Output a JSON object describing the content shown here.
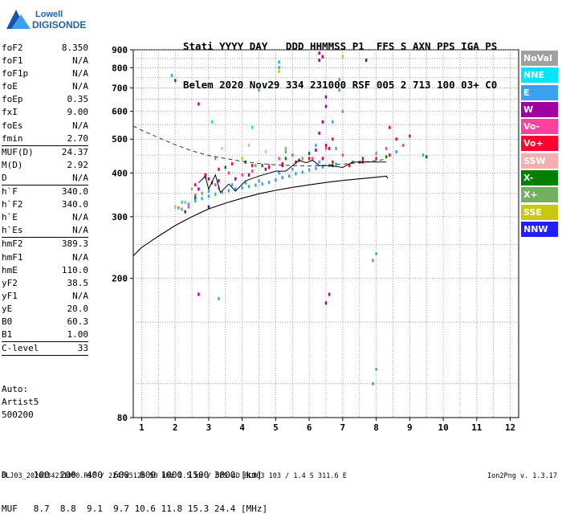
{
  "logo": {
    "line1": "Lowell",
    "line2": "DIGISONDE"
  },
  "header": {
    "line1": "Stati YYYY DAY   DDD HHMMSS P1  FFS S AXN PPS IGA PS",
    "line2": "Belem 2020 Nov29 334 231000 RSF 005 2 713 100 03+ C0"
  },
  "params": [
    {
      "k": "foF2",
      "v": "8.350"
    },
    {
      "k": "foF1",
      "v": "N/A"
    },
    {
      "k": "foF1p",
      "v": "N/A"
    },
    {
      "k": "foE",
      "v": "N/A"
    },
    {
      "k": "foEp",
      "v": "0.35"
    },
    {
      "k": "fxI",
      "v": "9.00"
    },
    {
      "k": "foEs",
      "v": "N/A"
    },
    {
      "k": "fmin",
      "v": "2.70",
      "sep": true
    },
    {
      "k": "MUF(D)",
      "v": "24.37"
    },
    {
      "k": "M(D)",
      "v": "2.92"
    },
    {
      "k": "D",
      "v": "N/A",
      "sep": true
    },
    {
      "k": "h`F",
      "v": "340.0"
    },
    {
      "k": "h`F2",
      "v": "340.0"
    },
    {
      "k": "h`E",
      "v": "N/A"
    },
    {
      "k": "h`Es",
      "v": "N/A",
      "sep": true
    },
    {
      "k": "hmF2",
      "v": "389.3"
    },
    {
      "k": "hmF1",
      "v": "N/A"
    },
    {
      "k": "hmE",
      "v": "110.0"
    },
    {
      "k": "yF2",
      "v": "38.5"
    },
    {
      "k": "yF1",
      "v": "N/A"
    },
    {
      "k": "yE",
      "v": "20.0"
    },
    {
      "k": "B0",
      "v": "60.3"
    },
    {
      "k": "B1",
      "v": "1.00",
      "sep": true
    },
    {
      "k": "C-level",
      "v": "33",
      "sep": true
    }
  ],
  "auto": {
    "line1": "Auto:",
    "line2": "Artist5",
    "line3": "500200"
  },
  "legend": [
    {
      "label": "NoVal",
      "color": "#a0a0a0"
    },
    {
      "label": "NNE",
      "color": "#00e5ff"
    },
    {
      "label": "E",
      "color": "#3aa0f0"
    },
    {
      "label": "W",
      "color": "#a000a0"
    },
    {
      "label": "Vo-",
      "color": "#ff40a0"
    },
    {
      "label": "Vo+",
      "color": "#ff0030"
    },
    {
      "label": "SSW",
      "color": "#f4b0b0"
    },
    {
      "label": "X-",
      "color": "#008000"
    },
    {
      "label": "X+",
      "color": "#70b060"
    },
    {
      "label": "SSE",
      "color": "#c8c810"
    },
    {
      "label": "NNW",
      "color": "#2020ff"
    }
  ],
  "dmuf": {
    "line1": "D     100  200  400  600  800 1000 1500 3000 [km]",
    "line2": "MUF   8.7  8.8  9.1  9.7 10.6 11.8 15.3 24.4 [MHz]"
  },
  "footer": "BLJ03_2020334231000.RSF / 224fx512h 50 kHz 2.5 km / DPS-4D BLJ03 103 / 1.4 S 311.6 E",
  "version": "Ion2Png v. 1.3.17",
  "chart_data": {
    "type": "scatter",
    "title": "",
    "xlabel": "",
    "ylabel": "",
    "xlim": [
      0.75,
      12.25
    ],
    "ylim": [
      80,
      900
    ],
    "y_scale": "log",
    "xticks": [
      1,
      2,
      3,
      4,
      5,
      6,
      7,
      8,
      9,
      10,
      11,
      12
    ],
    "yticks": [
      80,
      200,
      300,
      400,
      500,
      600,
      700,
      800,
      900
    ],
    "grid": true,
    "series": [
      {
        "name": "E",
        "color": "#3aa0f0",
        "points": [
          [
            2.1,
            318
          ],
          [
            2.4,
            326
          ],
          [
            2.6,
            333
          ],
          [
            2.8,
            338
          ],
          [
            3.0,
            343
          ],
          [
            3.2,
            348
          ],
          [
            3.4,
            352
          ],
          [
            3.6,
            356
          ],
          [
            3.8,
            360
          ],
          [
            4.0,
            363
          ],
          [
            4.2,
            366
          ],
          [
            4.4,
            369
          ],
          [
            4.6,
            372
          ],
          [
            4.8,
            376
          ],
          [
            5.0,
            382
          ],
          [
            5.2,
            388
          ],
          [
            5.4,
            392
          ],
          [
            5.6,
            398
          ],
          [
            5.8,
            402
          ],
          [
            6.0,
            408
          ],
          [
            6.2,
            412
          ],
          [
            6.4,
            416
          ],
          [
            6.6,
            420
          ],
          [
            6.8,
            424
          ],
          [
            3.0,
            355
          ],
          [
            3.3,
            362
          ],
          [
            3.7,
            370
          ],
          [
            4.1,
            375
          ],
          [
            4.5,
            380
          ],
          [
            5.1,
            400
          ],
          [
            5.5,
            410
          ],
          [
            6.3,
            430
          ],
          [
            6.8,
            470
          ],
          [
            6.9,
            690
          ],
          [
            6.9,
            740
          ],
          [
            5.1,
            830
          ],
          [
            5.1,
            800
          ],
          [
            4.5,
            690
          ],
          [
            6.2,
            480
          ],
          [
            7.9,
            225
          ],
          [
            8.0,
            235
          ],
          [
            7.9,
            100
          ],
          [
            8.0,
            110
          ],
          [
            8.6,
            460
          ],
          [
            9.4,
            450
          ],
          [
            4.9,
            720
          ],
          [
            3.3,
            175
          ],
          [
            1.9,
            760
          ],
          [
            7.0,
            600
          ],
          [
            6.7,
            560
          ]
        ]
      },
      {
        "name": "W",
        "color": "#a000a0",
        "points": [
          [
            2.7,
            360
          ],
          [
            3.0,
            385
          ],
          [
            3.3,
            380
          ],
          [
            3.8,
            385
          ],
          [
            4.2,
            395
          ],
          [
            4.7,
            410
          ],
          [
            5.2,
            420
          ],
          [
            5.7,
            435
          ],
          [
            6.2,
            465
          ],
          [
            6.3,
            880
          ],
          [
            6.4,
            860
          ],
          [
            6.3,
            840
          ],
          [
            6.5,
            660
          ],
          [
            6.5,
            620
          ],
          [
            6.3,
            520
          ],
          [
            6.4,
            560
          ],
          [
            6.6,
            470
          ],
          [
            6.5,
            170
          ],
          [
            6.6,
            180
          ],
          [
            2.7,
            630
          ],
          [
            2.0,
            735
          ],
          [
            2.7,
            180
          ]
        ]
      },
      {
        "name": "Vo-",
        "color": "#ff40a0",
        "points": [
          [
            2.4,
            320
          ],
          [
            2.6,
            345
          ],
          [
            2.9,
            390
          ],
          [
            3.2,
            370
          ],
          [
            3.6,
            400
          ],
          [
            4.0,
            395
          ],
          [
            4.3,
            405
          ],
          [
            4.8,
            420
          ],
          [
            5.1,
            440
          ],
          [
            5.5,
            450
          ],
          [
            6.1,
            440
          ],
          [
            6.5,
            470
          ],
          [
            7.0,
            450
          ],
          [
            7.5,
            430
          ],
          [
            8.3,
            470
          ],
          [
            8.8,
            480
          ]
        ]
      },
      {
        "name": "Vo+",
        "color": "#ff0030",
        "points": [
          [
            2.6,
            370
          ],
          [
            2.9,
            395
          ],
          [
            3.3,
            410
          ],
          [
            3.7,
            425
          ],
          [
            4.3,
            420
          ],
          [
            4.8,
            415
          ],
          [
            5.2,
            425
          ],
          [
            5.6,
            430
          ],
          [
            6.0,
            440
          ],
          [
            6.4,
            440
          ],
          [
            6.7,
            430
          ],
          [
            7.2,
            420
          ],
          [
            7.6,
            430
          ],
          [
            8.0,
            440
          ],
          [
            8.4,
            450
          ],
          [
            8.6,
            500
          ],
          [
            8.4,
            540
          ],
          [
            9.0,
            510
          ],
          [
            6.5,
            480
          ],
          [
            6.7,
            500
          ]
        ]
      },
      {
        "name": "X-",
        "color": "#008000",
        "points": [
          [
            2.6,
            340
          ],
          [
            3.1,
            375
          ],
          [
            3.5,
            415
          ],
          [
            4.1,
            430
          ],
          [
            4.6,
            420
          ],
          [
            5.3,
            440
          ],
          [
            6.0,
            455
          ],
          [
            6.7,
            420
          ],
          [
            7.6,
            440
          ],
          [
            8.3,
            445
          ],
          [
            9.5,
            445
          ]
        ]
      },
      {
        "name": "X+",
        "color": "#70b060",
        "points": [
          [
            2.2,
            315
          ],
          [
            2.8,
            350
          ],
          [
            3.2,
            440
          ],
          [
            4.4,
            420
          ],
          [
            5.3,
            460
          ],
          [
            5.8,
            440
          ],
          [
            7.3,
            430
          ],
          [
            8.0,
            455
          ]
        ]
      },
      {
        "name": "SSE",
        "color": "#c8c810",
        "points": [
          [
            2.0,
            320
          ],
          [
            2.3,
            330
          ],
          [
            4.0,
            440
          ],
          [
            5.1,
            780
          ],
          [
            7.0,
            860
          ]
        ]
      },
      {
        "name": "NNW",
        "color": "#2020ff",
        "points": [
          [
            2.3,
            310
          ],
          [
            3.0,
            320
          ],
          [
            7.7,
            840
          ]
        ]
      },
      {
        "name": "NNE",
        "color": "#00e5ff",
        "points": [
          [
            2.2,
            330
          ],
          [
            3.1,
            560
          ],
          [
            4.3,
            540
          ]
        ]
      },
      {
        "name": "SSW",
        "color": "#f4b0b0",
        "points": [
          [
            3.4,
            470
          ],
          [
            4.2,
            480
          ],
          [
            4.7,
            460
          ]
        ]
      },
      {
        "name": "NoVal",
        "color": "#a0a0a0",
        "points": [
          [
            2.5,
            360
          ],
          [
            5.3,
            470
          ]
        ]
      }
    ],
    "curves": {
      "dashed_muf": [
        [
          0.75,
          545
        ],
        [
          1.0,
          530
        ],
        [
          1.5,
          505
        ],
        [
          2.0,
          482
        ],
        [
          2.5,
          463
        ],
        [
          3.0,
          449
        ],
        [
          3.5,
          440
        ],
        [
          4.0,
          432
        ],
        [
          4.5,
          426
        ],
        [
          5.0,
          422
        ],
        [
          5.5,
          420
        ],
        [
          6.0,
          419
        ],
        [
          6.5,
          421
        ],
        [
          7.0,
          424
        ],
        [
          7.5,
          428
        ],
        [
          8.0,
          434
        ],
        [
          8.3,
          438
        ]
      ],
      "solid_lower": [
        [
          0.75,
          232
        ],
        [
          1.0,
          245
        ],
        [
          1.5,
          264
        ],
        [
          2.0,
          283
        ],
        [
          2.5,
          300
        ],
        [
          3.0,
          316
        ],
        [
          3.5,
          328
        ],
        [
          4.0,
          339
        ],
        [
          4.5,
          349
        ],
        [
          5.0,
          357
        ],
        [
          5.5,
          364
        ],
        [
          6.0,
          370
        ],
        [
          6.5,
          376
        ],
        [
          7.0,
          381
        ],
        [
          7.5,
          385
        ],
        [
          8.0,
          389
        ],
        [
          8.3,
          392
        ],
        [
          8.35,
          386
        ]
      ],
      "trace": [
        [
          2.7,
          375
        ],
        [
          2.9,
          392
        ],
        [
          3.0,
          360
        ],
        [
          3.2,
          395
        ],
        [
          3.35,
          352
        ],
        [
          3.6,
          372
        ],
        [
          3.8,
          355
        ],
        [
          4.1,
          380
        ],
        [
          4.5,
          392
        ],
        [
          5.0,
          405
        ],
        [
          5.3,
          405
        ],
        [
          5.7,
          435
        ],
        [
          5.9,
          428
        ],
        [
          6.1,
          435
        ],
        [
          6.3,
          420
        ],
        [
          6.6,
          420
        ],
        [
          7.0,
          415
        ],
        [
          7.3,
          430
        ],
        [
          7.6,
          430
        ],
        [
          7.9,
          430
        ],
        [
          8.3,
          430
        ]
      ]
    }
  }
}
